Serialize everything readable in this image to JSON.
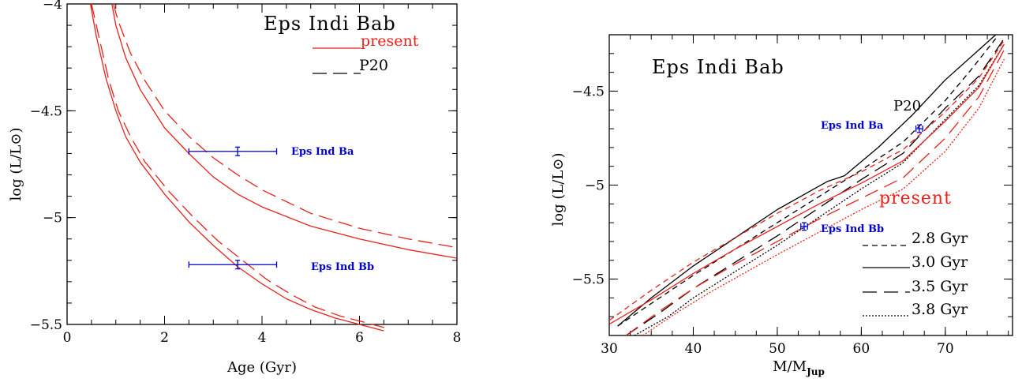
{
  "chart_data": [
    {
      "type": "line",
      "title": "Eps Indi Bab",
      "xlabel": "Age (Gyr)",
      "ylabel": "log (L/L⊙)",
      "xlim": [
        0,
        8
      ],
      "ylim": [
        -5.5,
        -4
      ],
      "xticks": [
        0,
        2,
        4,
        6,
        8
      ],
      "xtick_labels": [
        "0",
        "2",
        "4",
        "6",
        "8"
      ],
      "yticks": [
        -4,
        -4.5,
        -5,
        -5.5
      ],
      "ytick_labels": [
        "−4",
        "−4.5",
        "−5",
        "−5.5"
      ],
      "legend": [
        {
          "label": "present",
          "color": "#e8221a",
          "dash": "solid"
        },
        {
          "label": "P20",
          "color": "#000000",
          "dash": "dashed"
        }
      ],
      "series": [
        {
          "color": "#e8221a",
          "dash": "solid",
          "x": [
            0.48,
            0.6,
            0.8,
            1.0,
            1.2,
            1.5,
            2.0,
            2.5,
            3.0,
            3.5,
            4.0,
            4.5,
            5.0,
            5.5,
            6.0,
            6.5
          ],
          "y": [
            -4.0,
            -4.15,
            -4.35,
            -4.5,
            -4.62,
            -4.74,
            -4.89,
            -5.02,
            -5.13,
            -5.23,
            -5.31,
            -5.38,
            -5.43,
            -5.47,
            -5.5,
            -5.53
          ]
        },
        {
          "color": "#e8221a",
          "dash": "dashed",
          "x": [
            0.5,
            0.65,
            0.85,
            1.05,
            1.3,
            1.6,
            2.1,
            2.6,
            3.1,
            3.6,
            4.1,
            4.6,
            5.1,
            5.6,
            6.1,
            6.6
          ],
          "y": [
            -4.0,
            -4.15,
            -4.35,
            -4.5,
            -4.62,
            -4.74,
            -4.88,
            -5.0,
            -5.11,
            -5.2,
            -5.29,
            -5.36,
            -5.42,
            -5.46,
            -5.49,
            -5.52
          ]
        },
        {
          "color": "#e8221a",
          "dash": "solid",
          "x": [
            0.92,
            1.0,
            1.2,
            1.5,
            2.0,
            2.5,
            3.0,
            3.5,
            4.0,
            5.0,
            6.0,
            7.0,
            8.0
          ],
          "y": [
            -4.0,
            -4.1,
            -4.25,
            -4.4,
            -4.58,
            -4.7,
            -4.81,
            -4.89,
            -4.95,
            -5.04,
            -5.1,
            -5.15,
            -5.19
          ]
        },
        {
          "color": "#e8221a",
          "dash": "dashed",
          "x": [
            0.95,
            1.05,
            1.3,
            1.6,
            2.0,
            2.5,
            3.0,
            3.5,
            4.0,
            5.0,
            6.0,
            7.0,
            8.0
          ],
          "y": [
            -4.0,
            -4.08,
            -4.23,
            -4.36,
            -4.5,
            -4.62,
            -4.72,
            -4.8,
            -4.87,
            -4.98,
            -5.05,
            -5.1,
            -5.14
          ]
        }
      ],
      "points": [
        {
          "label": "Eps Ind Ba",
          "x": 3.5,
          "y": -4.69,
          "xerr": [
            2.5,
            4.3
          ],
          "yerr": 0.02,
          "color": "#0000cc"
        },
        {
          "label": "Eps Ind Bb",
          "x": 3.5,
          "y": -5.22,
          "xerr": [
            2.5,
            4.3
          ],
          "yerr": 0.02,
          "color": "#0000cc"
        }
      ]
    },
    {
      "type": "line",
      "title": "Eps Indi Bab",
      "xlabel": "M/M",
      "xlabel_sub": "Jup",
      "ylabel": "log (L/L⊙)",
      "xlim": [
        30,
        78
      ],
      "ylim": [
        -5.8,
        -4.2
      ],
      "xticks": [
        30,
        40,
        50,
        60,
        70
      ],
      "xtick_labels": [
        "30",
        "40",
        "50",
        "60",
        "70"
      ],
      "yticks": [
        -4.5,
        -5,
        -5.5
      ],
      "ytick_labels": [
        "−4.5",
        "−5",
        "−5.5"
      ],
      "labels": [
        {
          "text": "P20",
          "color": "#000000"
        },
        {
          "text": "present",
          "color": "#e8221a"
        }
      ],
      "legend": [
        {
          "label": "2.8 Gyr",
          "dash": "short-dashed"
        },
        {
          "label": "3.0 Gyr",
          "dash": "solid"
        },
        {
          "label": "3.5 Gyr",
          "dash": "long-dashed"
        },
        {
          "label": "3.8 Gyr",
          "dash": "dotted"
        }
      ],
      "series": [
        {
          "color": "#000000",
          "dash": "short",
          "x": [
            31,
            35,
            40,
            45,
            50,
            55,
            60,
            65,
            70,
            73,
            76
          ],
          "y": [
            -5.75,
            -5.63,
            -5.48,
            -5.34,
            -5.2,
            -5.06,
            -4.92,
            -4.77,
            -4.55,
            -4.39,
            -4.22
          ]
        },
        {
          "color": "#000000",
          "dash": "solid",
          "x": [
            31,
            35,
            40,
            45,
            50,
            54,
            56,
            58,
            62,
            66,
            70,
            73,
            76
          ],
          "y": [
            -5.75,
            -5.6,
            -5.43,
            -5.28,
            -5.13,
            -5.03,
            -4.98,
            -4.95,
            -4.8,
            -4.63,
            -4.44,
            -4.32,
            -4.2
          ]
        },
        {
          "color": "#000000",
          "dash": "long",
          "x": [
            32,
            36,
            40,
            45,
            50,
            55,
            60,
            65,
            70,
            74,
            77
          ],
          "y": [
            -5.8,
            -5.68,
            -5.55,
            -5.41,
            -5.27,
            -5.12,
            -4.97,
            -4.83,
            -4.59,
            -4.42,
            -4.22
          ]
        },
        {
          "color": "#000000",
          "dash": "dotted",
          "x": [
            33,
            37,
            40,
            45,
            50,
            55,
            60,
            65,
            70,
            74,
            77
          ],
          "y": [
            -5.8,
            -5.7,
            -5.6,
            -5.46,
            -5.32,
            -5.17,
            -5.02,
            -4.88,
            -4.65,
            -4.47,
            -4.25
          ]
        },
        {
          "color": "#e8221a",
          "dash": "short",
          "x": [
            30,
            35,
            40,
            45,
            50,
            55,
            60,
            65,
            70,
            74,
            77
          ],
          "y": [
            -5.72,
            -5.56,
            -5.41,
            -5.28,
            -5.15,
            -5.03,
            -4.93,
            -4.81,
            -4.61,
            -4.43,
            -4.23
          ]
        },
        {
          "color": "#e8221a",
          "dash": "solid",
          "x": [
            30,
            35,
            40,
            45,
            50,
            55,
            60,
            65,
            70,
            74,
            77
          ],
          "y": [
            -5.74,
            -5.61,
            -5.47,
            -5.34,
            -5.22,
            -5.1,
            -4.99,
            -4.87,
            -4.66,
            -4.48,
            -4.25
          ]
        },
        {
          "color": "#e8221a",
          "dash": "long",
          "x": [
            32,
            36,
            40,
            45,
            50,
            55,
            60,
            65,
            70,
            74,
            77
          ],
          "y": [
            -5.8,
            -5.67,
            -5.55,
            -5.42,
            -5.3,
            -5.18,
            -5.07,
            -4.96,
            -4.75,
            -4.53,
            -4.28
          ]
        },
        {
          "color": "#e8221a",
          "dash": "dotted",
          "x": [
            34,
            38,
            42,
            46,
            50,
            55,
            60,
            65,
            70,
            74,
            77
          ],
          "y": [
            -5.8,
            -5.68,
            -5.57,
            -5.47,
            -5.37,
            -5.25,
            -5.13,
            -5.02,
            -4.82,
            -4.59,
            -4.33
          ]
        }
      ],
      "points": [
        {
          "label": "Eps Ind Ba",
          "x": 66.9,
          "y": -4.7,
          "xerr": [
            66.5,
            67.3
          ],
          "yerr": 0.02,
          "color": "#0000cc"
        },
        {
          "label": "Eps Ind Bb",
          "x": 53.2,
          "y": -5.22,
          "xerr": [
            52.8,
            53.6
          ],
          "yerr": 0.02,
          "color": "#0000cc"
        }
      ]
    }
  ]
}
